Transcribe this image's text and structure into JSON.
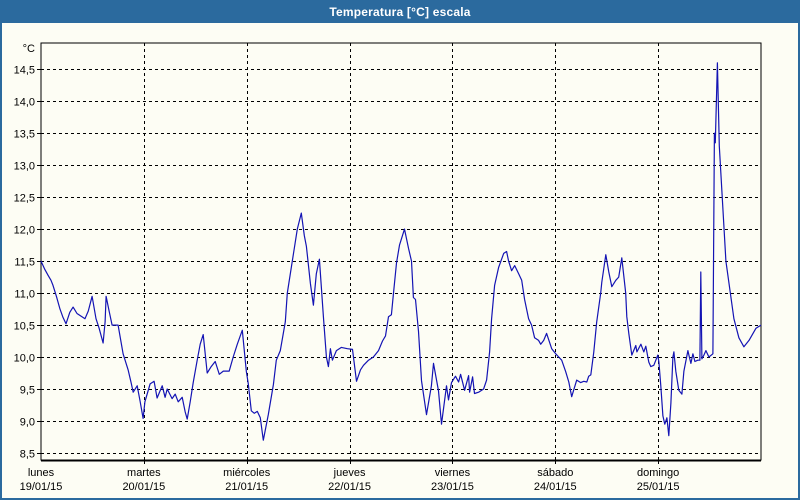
{
  "window": {
    "title": "Temperatura [°C] escala"
  },
  "colors": {
    "titlebar": "#2B6A9E",
    "frame_border": "#2B6A9E",
    "chart_background": "#FDFDF4",
    "grid": "#000000",
    "axis": "#000000",
    "line": "#1414B4",
    "title_text": "#FFFFFF",
    "label_text": "#000000"
  },
  "chart_data": {
    "type": "line",
    "title": "Temperatura [°C] escala",
    "ylabel": "",
    "xlabel": "",
    "y_unit_label": "°C",
    "grid": "dashed",
    "legend_position": "none",
    "ylim": [
      8.39,
      14.91
    ],
    "yticks": [
      {
        "v": 14.5,
        "label": "14,5"
      },
      {
        "v": 14.0,
        "label": "14,0"
      },
      {
        "v": 13.5,
        "label": "13,5"
      },
      {
        "v": 13.0,
        "label": "13,0"
      },
      {
        "v": 12.5,
        "label": "12,5"
      },
      {
        "v": 12.0,
        "label": "12,0"
      },
      {
        "v": 11.5,
        "label": "11,5"
      },
      {
        "v": 11.0,
        "label": "11,0"
      },
      {
        "v": 10.5,
        "label": "10,5"
      },
      {
        "v": 10.0,
        "label": "10,0"
      },
      {
        "v": 9.5,
        "label": "9,5"
      },
      {
        "v": 9.0,
        "label": "9,0"
      },
      {
        "v": 8.5,
        "label": "8,5"
      }
    ],
    "xlim_days": [
      0,
      7
    ],
    "x_labels": [
      {
        "name": "lunes",
        "date": "19/01/15"
      },
      {
        "name": "martes",
        "date": "20/01/15"
      },
      {
        "name": "miércoles",
        "date": "21/01/15"
      },
      {
        "name": "jueves",
        "date": "22/01/15"
      },
      {
        "name": "viernes",
        "date": "23/01/15"
      },
      {
        "name": "sábado",
        "date": "24/01/15"
      },
      {
        "name": "domingo",
        "date": "25/01/15"
      }
    ],
    "series": [
      {
        "name": "Temperatura",
        "color": "#1414B4",
        "points": [
          [
            0.0,
            11.5
          ],
          [
            0.034,
            11.38
          ],
          [
            0.068,
            11.28
          ],
          [
            0.097,
            11.2
          ],
          [
            0.117,
            11.12
          ],
          [
            0.15,
            10.95
          ],
          [
            0.185,
            10.75
          ],
          [
            0.214,
            10.62
          ],
          [
            0.243,
            10.52
          ],
          [
            0.28,
            10.7
          ],
          [
            0.312,
            10.78
          ],
          [
            0.35,
            10.68
          ],
          [
            0.428,
            10.6
          ],
          [
            0.46,
            10.72
          ],
          [
            0.497,
            10.95
          ],
          [
            0.535,
            10.6
          ],
          [
            0.565,
            10.45
          ],
          [
            0.604,
            10.22
          ],
          [
            0.623,
            10.55
          ],
          [
            0.633,
            10.95
          ],
          [
            0.662,
            10.72
          ],
          [
            0.691,
            10.5
          ],
          [
            0.75,
            10.5
          ],
          [
            0.798,
            10.05
          ],
          [
            0.847,
            9.8
          ],
          [
            0.876,
            9.6
          ],
          [
            0.896,
            9.45
          ],
          [
            0.935,
            9.55
          ],
          [
            0.964,
            9.3
          ],
          [
            0.993,
            9.04
          ],
          [
            1.01,
            9.3
          ],
          [
            1.061,
            9.58
          ],
          [
            1.1,
            9.62
          ],
          [
            1.129,
            9.36
          ],
          [
            1.178,
            9.55
          ],
          [
            1.207,
            9.37
          ],
          [
            1.227,
            9.5
          ],
          [
            1.275,
            9.35
          ],
          [
            1.305,
            9.42
          ],
          [
            1.334,
            9.3
          ],
          [
            1.373,
            9.37
          ],
          [
            1.402,
            9.14
          ],
          [
            1.421,
            9.03
          ],
          [
            1.451,
            9.3
          ],
          [
            1.48,
            9.6
          ],
          [
            1.519,
            9.95
          ],
          [
            1.548,
            10.2
          ],
          [
            1.577,
            10.35
          ],
          [
            1.616,
            9.75
          ],
          [
            1.655,
            9.85
          ],
          [
            1.694,
            9.93
          ],
          [
            1.733,
            9.73
          ],
          [
            1.772,
            9.78
          ],
          [
            1.83,
            9.78
          ],
          [
            1.869,
            10.0
          ],
          [
            1.908,
            10.2
          ],
          [
            1.957,
            10.42
          ],
          [
            1.996,
            9.78
          ],
          [
            2.015,
            9.58
          ],
          [
            2.045,
            9.16
          ],
          [
            2.074,
            9.12
          ],
          [
            2.103,
            9.15
          ],
          [
            2.132,
            9.05
          ],
          [
            2.161,
            8.7
          ],
          [
            2.21,
            9.1
          ],
          [
            2.259,
            9.57
          ],
          [
            2.288,
            9.95
          ],
          [
            2.327,
            10.1
          ],
          [
            2.375,
            10.55
          ],
          [
            2.395,
            11.0
          ],
          [
            2.424,
            11.3
          ],
          [
            2.463,
            11.7
          ],
          [
            2.492,
            12.0
          ],
          [
            2.531,
            12.25
          ],
          [
            2.56,
            11.9
          ],
          [
            2.58,
            11.73
          ],
          [
            2.619,
            11.15
          ],
          [
            2.648,
            10.81
          ],
          [
            2.677,
            11.3
          ],
          [
            2.707,
            11.53
          ],
          [
            2.746,
            10.63
          ],
          [
            2.775,
            10.0
          ],
          [
            2.794,
            9.85
          ],
          [
            2.814,
            10.13
          ],
          [
            2.833,
            9.95
          ],
          [
            2.872,
            10.1
          ],
          [
            2.921,
            10.15
          ],
          [
            2.979,
            10.13
          ],
          [
            3.028,
            10.12
          ],
          [
            3.067,
            9.62
          ],
          [
            3.106,
            9.8
          ],
          [
            3.135,
            9.87
          ],
          [
            3.184,
            9.95
          ],
          [
            3.232,
            10.0
          ],
          [
            3.281,
            10.1
          ],
          [
            3.32,
            10.25
          ],
          [
            3.349,
            10.33
          ],
          [
            3.378,
            10.63
          ],
          [
            3.407,
            10.66
          ],
          [
            3.427,
            11.0
          ],
          [
            3.456,
            11.47
          ],
          [
            3.485,
            11.75
          ],
          [
            3.534,
            12.0
          ],
          [
            3.573,
            11.7
          ],
          [
            3.602,
            11.5
          ],
          [
            3.621,
            10.93
          ],
          [
            3.641,
            10.9
          ],
          [
            3.67,
            10.4
          ],
          [
            3.699,
            9.63
          ],
          [
            3.748,
            9.1
          ],
          [
            3.796,
            9.55
          ],
          [
            3.816,
            9.9
          ],
          [
            3.865,
            9.47
          ],
          [
            3.894,
            8.95
          ],
          [
            3.942,
            9.55
          ],
          [
            3.962,
            9.33
          ],
          [
            3.991,
            9.6
          ],
          [
            4.03,
            9.7
          ],
          [
            4.06,
            9.61
          ],
          [
            4.079,
            9.73
          ],
          [
            4.118,
            9.48
          ],
          [
            4.157,
            9.71
          ],
          [
            4.167,
            9.45
          ],
          [
            4.196,
            9.69
          ],
          [
            4.215,
            9.43
          ],
          [
            4.254,
            9.45
          ],
          [
            4.303,
            9.5
          ],
          [
            4.332,
            9.64
          ],
          [
            4.361,
            10.08
          ],
          [
            4.381,
            10.6
          ],
          [
            4.41,
            11.12
          ],
          [
            4.449,
            11.4
          ],
          [
            4.498,
            11.62
          ],
          [
            4.527,
            11.65
          ],
          [
            4.546,
            11.5
          ],
          [
            4.575,
            11.35
          ],
          [
            4.605,
            11.43
          ],
          [
            4.644,
            11.3
          ],
          [
            4.673,
            11.2
          ],
          [
            4.702,
            10.9
          ],
          [
            4.741,
            10.6
          ],
          [
            4.77,
            10.5
          ],
          [
            4.799,
            10.3
          ],
          [
            4.838,
            10.26
          ],
          [
            4.858,
            10.2
          ],
          [
            4.887,
            10.26
          ],
          [
            4.916,
            10.37
          ],
          [
            4.965,
            10.13
          ],
          [
            5.004,
            10.05
          ],
          [
            5.033,
            10.0
          ],
          [
            5.062,
            9.95
          ],
          [
            5.101,
            9.77
          ],
          [
            5.131,
            9.61
          ],
          [
            5.16,
            9.38
          ],
          [
            5.208,
            9.64
          ],
          [
            5.247,
            9.6
          ],
          [
            5.277,
            9.62
          ],
          [
            5.306,
            9.61
          ],
          [
            5.325,
            9.7
          ],
          [
            5.345,
            9.72
          ],
          [
            5.374,
            10.08
          ],
          [
            5.403,
            10.55
          ],
          [
            5.442,
            11.0
          ],
          [
            5.452,
            11.17
          ],
          [
            5.491,
            11.6
          ],
          [
            5.52,
            11.33
          ],
          [
            5.549,
            11.1
          ],
          [
            5.588,
            11.2
          ],
          [
            5.617,
            11.25
          ],
          [
            5.647,
            11.55
          ],
          [
            5.685,
            11.0
          ],
          [
            5.695,
            10.63
          ],
          [
            5.715,
            10.37
          ],
          [
            5.744,
            10.03
          ],
          [
            5.783,
            10.18
          ],
          [
            5.793,
            10.08
          ],
          [
            5.832,
            10.2
          ],
          [
            5.861,
            10.08
          ],
          [
            5.88,
            10.17
          ],
          [
            5.909,
            9.92
          ],
          [
            5.929,
            9.85
          ],
          [
            5.958,
            9.87
          ],
          [
            5.997,
            10.03
          ],
          [
            6.007,
            9.92
          ],
          [
            6.026,
            9.55
          ],
          [
            6.046,
            9.08
          ],
          [
            6.065,
            8.95
          ],
          [
            6.085,
            9.05
          ],
          [
            6.104,
            8.77
          ],
          [
            6.124,
            9.28
          ],
          [
            6.143,
            10.0
          ],
          [
            6.153,
            10.08
          ],
          [
            6.172,
            9.78
          ],
          [
            6.201,
            9.48
          ],
          [
            6.231,
            9.42
          ],
          [
            6.25,
            9.78
          ],
          [
            6.289,
            10.1
          ],
          [
            6.299,
            10.03
          ],
          [
            6.318,
            9.9
          ],
          [
            6.338,
            10.05
          ],
          [
            6.357,
            9.93
          ],
          [
            6.386,
            9.95
          ],
          [
            6.406,
            9.95
          ],
          [
            6.415,
            11.33
          ],
          [
            6.425,
            9.97
          ],
          [
            6.445,
            10.03
          ],
          [
            6.464,
            10.1
          ],
          [
            6.493,
            10.0
          ],
          [
            6.532,
            10.05
          ],
          [
            6.547,
            13.5
          ],
          [
            6.556,
            13.35
          ],
          [
            6.576,
            14.6
          ],
          [
            6.595,
            13.3
          ],
          [
            6.659,
            11.5
          ],
          [
            6.737,
            10.6
          ],
          [
            6.785,
            10.3
          ],
          [
            6.834,
            10.16
          ],
          [
            6.883,
            10.26
          ],
          [
            6.951,
            10.45
          ],
          [
            7.0,
            10.5
          ]
        ]
      }
    ]
  }
}
